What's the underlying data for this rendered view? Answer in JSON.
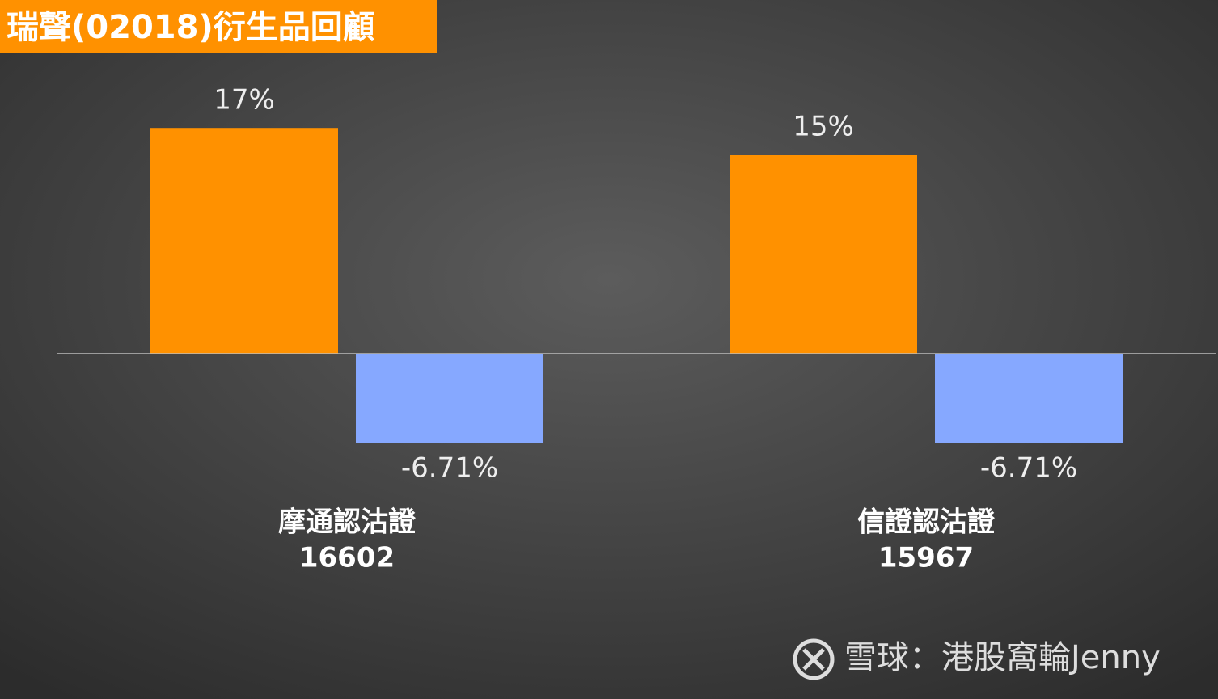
{
  "chart_data": {
    "type": "bar",
    "title": "瑞聲(02018)衍生品回顧",
    "categories": [
      [
        "摩通認沽證",
        "16602"
      ],
      [
        "信證認沽證",
        "15967"
      ]
    ],
    "series": [
      {
        "color": "#ff9100",
        "values": [
          17,
          15
        ],
        "value_labels": [
          "17%",
          "15%"
        ]
      },
      {
        "color": "#86a8ff",
        "values": [
          -6.71,
          -6.71
        ],
        "value_labels": [
          "-6.71%",
          "-6.71%"
        ]
      }
    ],
    "ylim": [
      -15,
      20
    ],
    "watermark": "雪球：港股窩輪Jenny"
  }
}
